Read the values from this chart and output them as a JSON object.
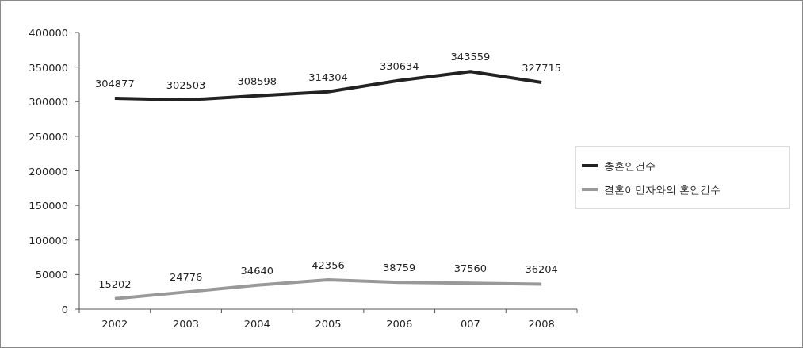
{
  "chart_data": {
    "type": "line",
    "categories": [
      "2002",
      "2003",
      "2004",
      "2005",
      "2006",
      "007",
      "2008"
    ],
    "series": [
      {
        "name": "총혼인건수",
        "color": "#222222",
        "values": [
          304877,
          302503,
          308598,
          314304,
          330634,
          343559,
          327715
        ]
      },
      {
        "name": "결혼이민자와의 혼인건수",
        "color": "#999999",
        "values": [
          15202,
          24776,
          34640,
          42356,
          38759,
          37560,
          36204
        ]
      }
    ],
    "ylim": [
      0,
      400000
    ],
    "yticks": [
      0,
      50000,
      100000,
      150000,
      200000,
      250000,
      300000,
      350000,
      400000
    ],
    "data_labels": true,
    "legend": "right",
    "grid": false
  }
}
